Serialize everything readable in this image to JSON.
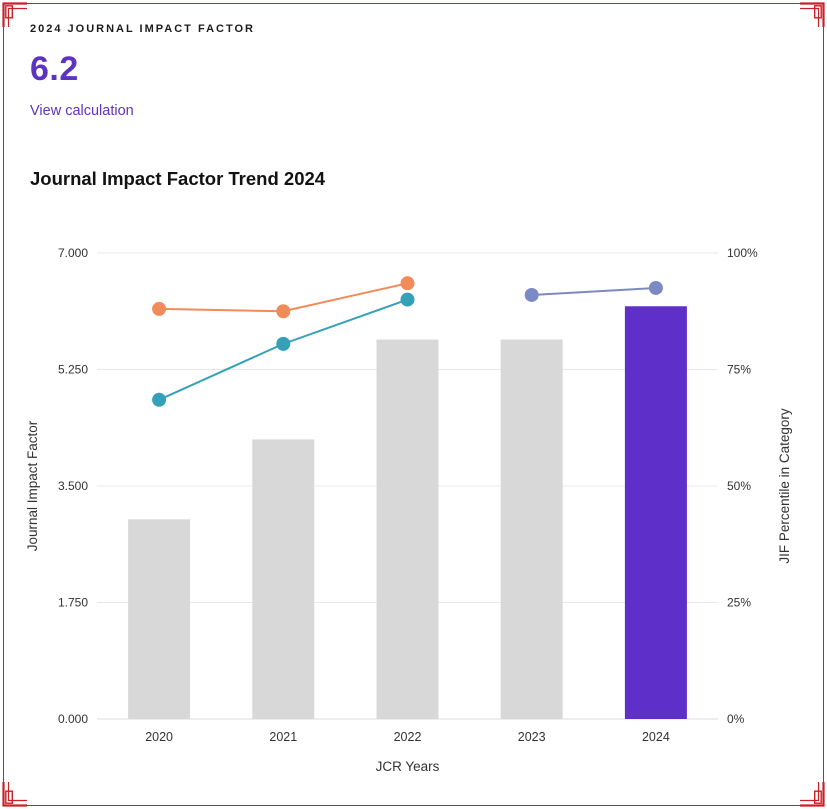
{
  "header": {
    "kicker": "2024 JOURNAL IMPACT FACTOR",
    "value": "6.2",
    "link_label": "View calculation"
  },
  "section_title": "Journal Impact Factor Trend 2024",
  "colors": {
    "accent_purple": "#5e33bf",
    "frame_red": "#c92127",
    "bar_gray": "#d8d8d8",
    "bar_highlight": "#5e2fc9",
    "line_orange": "#f18b59",
    "line_teal": "#34a1b8",
    "line_slate": "#7b8ac4",
    "grid": "#e8e8e8",
    "axis_line": "#dddddd",
    "tick_text": "#333333"
  },
  "chart_data": {
    "type": "bar+line",
    "title": "Journal Impact Factor Trend 2024",
    "categories": [
      "2020",
      "2021",
      "2022",
      "2023",
      "2024"
    ],
    "bars": {
      "name": "Journal Impact Factor",
      "values": [
        3.0,
        4.2,
        5.7,
        5.7,
        6.2
      ],
      "highlight_category": "2024"
    },
    "line_series": [
      {
        "name": "JIF Percentile in Category — series 1",
        "color_key": "line_orange",
        "points": [
          {
            "x": "2020",
            "y": 88
          },
          {
            "x": "2021",
            "y": 87.5
          },
          {
            "x": "2022",
            "y": 93.5
          }
        ]
      },
      {
        "name": "JIF Percentile in Category — series 2",
        "color_key": "line_teal",
        "points": [
          {
            "x": "2020",
            "y": 68.5
          },
          {
            "x": "2021",
            "y": 80.5
          },
          {
            "x": "2022",
            "y": 90
          }
        ]
      },
      {
        "name": "JIF Percentile in Category — 2023-2024",
        "color_key": "line_slate",
        "points": [
          {
            "x": "2023",
            "y": 91
          },
          {
            "x": "2024",
            "y": 92.5
          }
        ]
      }
    ],
    "y_left": {
      "label": "Journal Impact Factor",
      "ticks": [
        "7.000",
        "5.250",
        "3.500",
        "1.750",
        "0.000"
      ],
      "min": 0,
      "max": 7
    },
    "y_right": {
      "label": "JIF Percentile in Category",
      "ticks": [
        "100%",
        "75%",
        "50%",
        "25%",
        "0%"
      ],
      "min": 0,
      "max": 100
    },
    "x": {
      "label": "JCR Years"
    },
    "grid": true,
    "legend": "none"
  }
}
